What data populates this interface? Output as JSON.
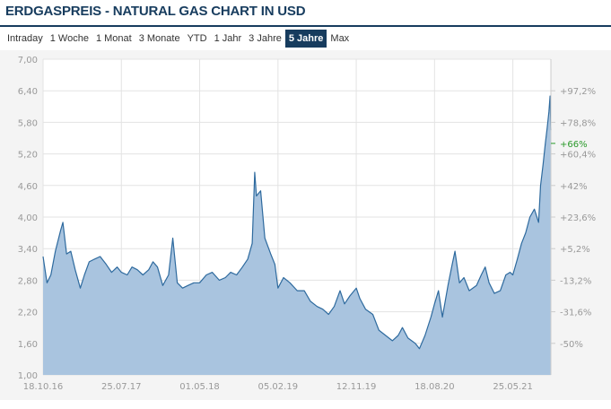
{
  "title": "ERDGASPREIS - NATURAL GAS CHART IN USD",
  "tabs": [
    {
      "label": "Intraday",
      "active": false
    },
    {
      "label": "1 Woche",
      "active": false
    },
    {
      "label": "1 Monat",
      "active": false
    },
    {
      "label": "3 Monate",
      "active": false
    },
    {
      "label": "YTD",
      "active": false
    },
    {
      "label": "1 Jahr",
      "active": false
    },
    {
      "label": "3 Jahre",
      "active": false
    },
    {
      "label": "5 Jahre",
      "active": true
    },
    {
      "label": "Max",
      "active": false
    }
  ],
  "colors": {
    "accent": "#173c5e",
    "area_fill": "#a9c4df",
    "line": "#2e6a9e",
    "current_pct": "#2a9a2a"
  },
  "chart_data": {
    "type": "area",
    "title": "ERDGASPREIS - NATURAL GAS CHART IN USD",
    "xlabel": "",
    "ylabel": "",
    "ylim": [
      1.0,
      7.0
    ],
    "grid": true,
    "y_ticks": [
      "7,00",
      "6,40",
      "5,80",
      "5,20",
      "4,60",
      "4,00",
      "3,40",
      "2,80",
      "2,20",
      "1,60",
      "1,00"
    ],
    "y_tick_values": [
      7.0,
      6.4,
      5.8,
      5.2,
      4.6,
      4.0,
      3.4,
      2.8,
      2.2,
      1.6,
      1.0
    ],
    "x_ticks": [
      "18.10.16",
      "25.07.17",
      "01.05.18",
      "05.02.19",
      "12.11.19",
      "18.08.20",
      "25.05.21"
    ],
    "x_tick_values": [
      "2016-10-18",
      "2017-07-25",
      "2018-05-01",
      "2019-02-05",
      "2019-11-12",
      "2020-08-18",
      "2021-05-25"
    ],
    "x_range": [
      "2016-10-18",
      "2021-10-08"
    ],
    "pct_ticks": [
      "+97,2%",
      "+78,8%",
      "+60,4%",
      "+42%",
      "+23,6%",
      "+5,2%",
      "-13,2%",
      "-31,6%",
      "-50%"
    ],
    "pct_tick_values": [
      6.4,
      5.8,
      5.2,
      4.6,
      4.0,
      3.4,
      2.8,
      2.2,
      1.6
    ],
    "current_pct": "+66%",
    "current_pct_value": 5.4,
    "series": [
      {
        "values": [
          [
            "2016-10-18",
            3.25
          ],
          [
            "2016-11-01",
            2.75
          ],
          [
            "2016-11-15",
            2.9
          ],
          [
            "2016-12-01",
            3.35
          ],
          [
            "2016-12-20",
            3.75
          ],
          [
            "2016-12-28",
            3.9
          ],
          [
            "2017-01-10",
            3.3
          ],
          [
            "2017-01-25",
            3.35
          ],
          [
            "2017-02-10",
            3.0
          ],
          [
            "2017-02-28",
            2.65
          ],
          [
            "2017-03-15",
            2.9
          ],
          [
            "2017-04-01",
            3.15
          ],
          [
            "2017-04-20",
            3.2
          ],
          [
            "2017-05-10",
            3.25
          ],
          [
            "2017-06-01",
            3.1
          ],
          [
            "2017-06-20",
            2.95
          ],
          [
            "2017-07-10",
            3.05
          ],
          [
            "2017-07-25",
            2.95
          ],
          [
            "2017-08-15",
            2.9
          ],
          [
            "2017-09-01",
            3.05
          ],
          [
            "2017-09-20",
            3.0
          ],
          [
            "2017-10-10",
            2.9
          ],
          [
            "2017-10-31",
            3.0
          ],
          [
            "2017-11-15",
            3.15
          ],
          [
            "2017-12-01",
            3.05
          ],
          [
            "2017-12-20",
            2.7
          ],
          [
            "2018-01-10",
            2.9
          ],
          [
            "2018-01-25",
            3.6
          ],
          [
            "2018-02-10",
            2.75
          ],
          [
            "2018-03-01",
            2.65
          ],
          [
            "2018-03-20",
            2.7
          ],
          [
            "2018-04-10",
            2.75
          ],
          [
            "2018-05-01",
            2.75
          ],
          [
            "2018-05-25",
            2.9
          ],
          [
            "2018-06-15",
            2.95
          ],
          [
            "2018-07-10",
            2.8
          ],
          [
            "2018-08-01",
            2.85
          ],
          [
            "2018-08-20",
            2.95
          ],
          [
            "2018-09-10",
            2.9
          ],
          [
            "2018-10-01",
            3.05
          ],
          [
            "2018-10-20",
            3.2
          ],
          [
            "2018-11-05",
            3.5
          ],
          [
            "2018-11-14",
            4.85
          ],
          [
            "2018-11-20",
            4.4
          ],
          [
            "2018-12-05",
            4.5
          ],
          [
            "2018-12-20",
            3.6
          ],
          [
            "2019-01-10",
            3.3
          ],
          [
            "2019-01-25",
            3.1
          ],
          [
            "2019-02-05",
            2.65
          ],
          [
            "2019-02-25",
            2.85
          ],
          [
            "2019-03-20",
            2.75
          ],
          [
            "2019-04-15",
            2.6
          ],
          [
            "2019-05-10",
            2.6
          ],
          [
            "2019-06-01",
            2.4
          ],
          [
            "2019-06-25",
            2.3
          ],
          [
            "2019-07-15",
            2.25
          ],
          [
            "2019-08-05",
            2.15
          ],
          [
            "2019-08-25",
            2.3
          ],
          [
            "2019-09-15",
            2.6
          ],
          [
            "2019-10-01",
            2.35
          ],
          [
            "2019-10-20",
            2.5
          ],
          [
            "2019-11-12",
            2.65
          ],
          [
            "2019-11-25",
            2.45
          ],
          [
            "2019-12-15",
            2.25
          ],
          [
            "2020-01-10",
            2.15
          ],
          [
            "2020-02-01",
            1.85
          ],
          [
            "2020-02-25",
            1.75
          ],
          [
            "2020-03-20",
            1.65
          ],
          [
            "2020-04-10",
            1.75
          ],
          [
            "2020-04-25",
            1.9
          ],
          [
            "2020-05-15",
            1.7
          ],
          [
            "2020-06-10",
            1.6
          ],
          [
            "2020-06-25",
            1.5
          ],
          [
            "2020-07-15",
            1.75
          ],
          [
            "2020-08-05",
            2.1
          ],
          [
            "2020-08-18",
            2.35
          ],
          [
            "2020-09-01",
            2.6
          ],
          [
            "2020-09-15",
            2.1
          ],
          [
            "2020-10-05",
            2.7
          ],
          [
            "2020-10-20",
            3.1
          ],
          [
            "2020-10-30",
            3.35
          ],
          [
            "2020-11-15",
            2.75
          ],
          [
            "2020-12-01",
            2.85
          ],
          [
            "2020-12-20",
            2.6
          ],
          [
            "2021-01-15",
            2.7
          ],
          [
            "2021-02-01",
            2.9
          ],
          [
            "2021-02-15",
            3.05
          ],
          [
            "2021-03-01",
            2.75
          ],
          [
            "2021-03-20",
            2.55
          ],
          [
            "2021-04-10",
            2.6
          ],
          [
            "2021-04-30",
            2.9
          ],
          [
            "2021-05-15",
            2.95
          ],
          [
            "2021-05-25",
            2.9
          ],
          [
            "2021-06-10",
            3.2
          ],
          [
            "2021-06-25",
            3.5
          ],
          [
            "2021-07-10",
            3.7
          ],
          [
            "2021-07-25",
            4.0
          ],
          [
            "2021-08-10",
            4.15
          ],
          [
            "2021-08-25",
            3.9
          ],
          [
            "2021-09-01",
            4.6
          ],
          [
            "2021-09-10",
            5.0
          ],
          [
            "2021-09-18",
            5.4
          ],
          [
            "2021-09-25",
            5.7
          ],
          [
            "2021-10-01",
            6.0
          ],
          [
            "2021-10-05",
            6.3
          ],
          [
            "2021-10-08",
            5.65
          ]
        ]
      }
    ]
  }
}
